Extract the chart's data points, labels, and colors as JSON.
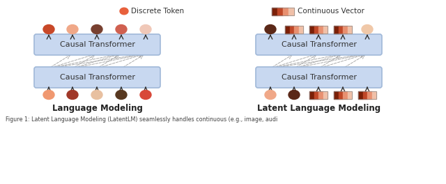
{
  "fig_width": 6.4,
  "fig_height": 2.64,
  "dpi": 100,
  "bg_color": "#ffffff",
  "legend_discrete_color": "#E8603C",
  "legend_discrete_label": "Discrete Token",
  "legend_continuous_label": "Continuous Vector",
  "continuous_colors": [
    "#7B2008",
    "#C04828",
    "#E89070",
    "#F0C0A8"
  ],
  "box_color": "#C8D8F0",
  "box_edge_color": "#A0B8D8",
  "left_title": "Language Modeling",
  "right_title": "Latent Language Modeling",
  "caption": "Figure 1: Latent Language Modeling (LatentLM) seamlessly handles continuous (e.g., image, audi",
  "left_tokens_top": [
    {
      "type": "discrete",
      "color": "#C84828"
    },
    {
      "type": "discrete",
      "color": "#F0A888"
    },
    {
      "type": "discrete",
      "color": "#784030"
    },
    {
      "type": "discrete",
      "color": "#D06050"
    },
    {
      "type": "discrete",
      "color": "#F0C8B8"
    }
  ],
  "left_tokens_bottom": [
    {
      "type": "discrete",
      "color": "#F09870"
    },
    {
      "type": "discrete",
      "color": "#A03828"
    },
    {
      "type": "discrete",
      "color": "#E8C0A0"
    },
    {
      "type": "discrete",
      "color": "#583820"
    },
    {
      "type": "discrete",
      "color": "#D84838"
    }
  ],
  "right_tokens_top": [
    {
      "type": "discrete",
      "color": "#5B2818"
    },
    {
      "type": "continuous"
    },
    {
      "type": "continuous"
    },
    {
      "type": "continuous"
    },
    {
      "type": "discrete",
      "color": "#F0C8A8"
    }
  ],
  "right_tokens_bottom": [
    {
      "type": "discrete",
      "color": "#F0A888"
    },
    {
      "type": "discrete",
      "color": "#5B2818"
    },
    {
      "type": "continuous"
    },
    {
      "type": "continuous"
    },
    {
      "type": "continuous"
    }
  ]
}
